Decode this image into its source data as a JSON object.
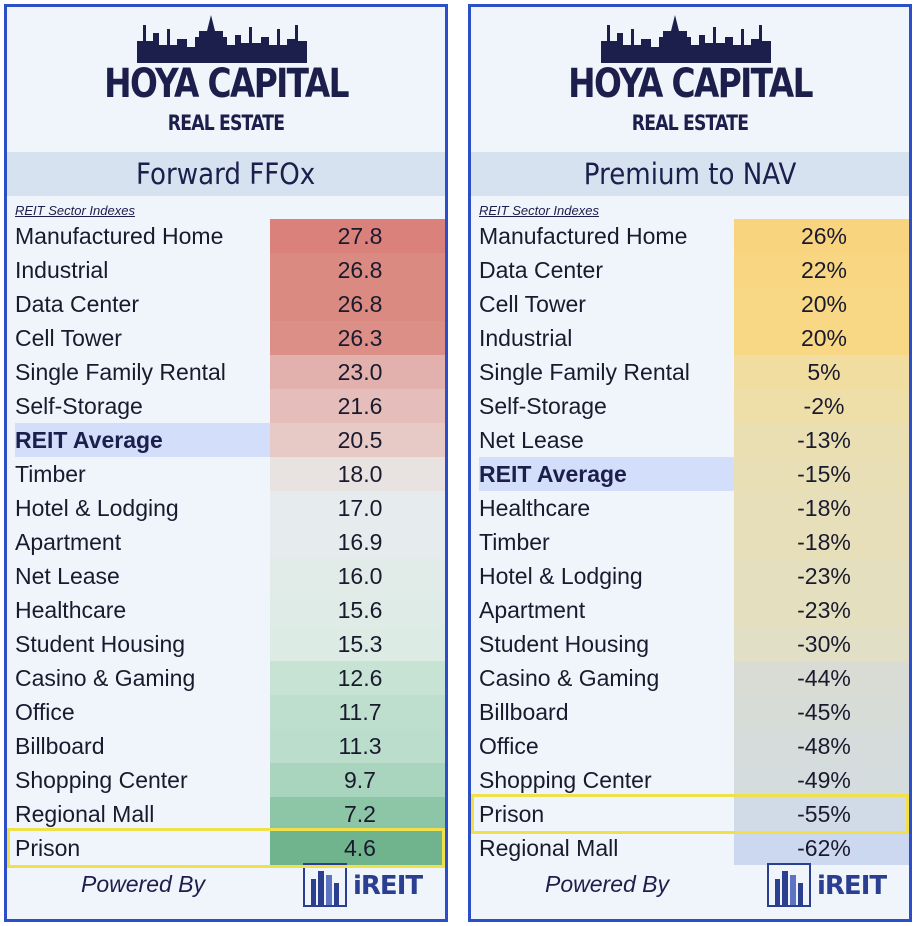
{
  "brand": {
    "name": "HOYA CAPITAL",
    "sub": "REAL ESTATE"
  },
  "footer": {
    "powered_by": "Powered By",
    "partner": "iREIT"
  },
  "highlight_color": "#f0e04a",
  "chart_data": [
    {
      "type": "table",
      "title": "Forward FFOx",
      "subtitle": "REIT Sector Indexes",
      "rows": [
        {
          "label": "Manufactured Home",
          "value": "27.8",
          "bg": "#d9817a"
        },
        {
          "label": "Industrial",
          "value": "26.8",
          "bg": "#db8a82"
        },
        {
          "label": "Data Center",
          "value": "26.8",
          "bg": "#db8a82"
        },
        {
          "label": "Cell Tower",
          "value": "26.3",
          "bg": "#dc8f87"
        },
        {
          "label": "Single Family Rental",
          "value": "23.0",
          "bg": "#e3b1ad"
        },
        {
          "label": "Self-Storage",
          "value": "21.6",
          "bg": "#e5bebb"
        },
        {
          "label": "REIT Average",
          "value": "20.5",
          "bg": "#e7c9c6",
          "emphasis": true
        },
        {
          "label": "Timber",
          "value": "18.0",
          "bg": "#e8e2e1"
        },
        {
          "label": "Hotel & Lodging",
          "value": "17.0",
          "bg": "#e6ecee"
        },
        {
          "label": "Apartment",
          "value": "16.9",
          "bg": "#e6ecee"
        },
        {
          "label": "Net Lease",
          "value": "16.0",
          "bg": "#e1ebe8"
        },
        {
          "label": "Healthcare",
          "value": "15.6",
          "bg": "#dfebe6"
        },
        {
          "label": "Student Housing",
          "value": "15.3",
          "bg": "#dcebe4"
        },
        {
          "label": "Casino & Gaming",
          "value": "12.6",
          "bg": "#c7e3d4"
        },
        {
          "label": "Office",
          "value": "11.7",
          "bg": "#bfdfce"
        },
        {
          "label": "Billboard",
          "value": "11.3",
          "bg": "#bbddcb"
        },
        {
          "label": "Shopping Center",
          "value": "9.7",
          "bg": "#a9d4bd"
        },
        {
          "label": "Regional Mall",
          "value": "7.2",
          "bg": "#8dc6a7"
        },
        {
          "label": "Prison",
          "value": "4.6",
          "bg": "#6fb48c",
          "highlight": true
        }
      ]
    },
    {
      "type": "table",
      "title": "Premium to NAV",
      "subtitle": "REIT Sector Indexes",
      "rows": [
        {
          "label": "Manufactured Home",
          "value": "26%",
          "bg": "#f8d47f"
        },
        {
          "label": "Data Center",
          "value": "22%",
          "bg": "#f8d682"
        },
        {
          "label": "Cell Tower",
          "value": "20%",
          "bg": "#f8d885"
        },
        {
          "label": "Industrial",
          "value": "20%",
          "bg": "#f8d885"
        },
        {
          "label": "Single Family Rental",
          "value": "5%",
          "bg": "#f2dda0"
        },
        {
          "label": "Self-Storage",
          "value": "-2%",
          "bg": "#eedfa8"
        },
        {
          "label": "Net Lease",
          "value": "-13%",
          "bg": "#eadfb3"
        },
        {
          "label": "REIT Average",
          "value": "-15%",
          "bg": "#e9dfb6",
          "emphasis": true
        },
        {
          "label": "Healthcare",
          "value": "-18%",
          "bg": "#e7dfb9"
        },
        {
          "label": "Timber",
          "value": "-18%",
          "bg": "#e7dfb9"
        },
        {
          "label": "Hotel & Lodging",
          "value": "-23%",
          "bg": "#e4dfbf"
        },
        {
          "label": "Apartment",
          "value": "-23%",
          "bg": "#e4dfbf"
        },
        {
          "label": "Student Housing",
          "value": "-30%",
          "bg": "#e1dfc6"
        },
        {
          "label": "Casino & Gaming",
          "value": "-44%",
          "bg": "#d9dcd4"
        },
        {
          "label": "Billboard",
          "value": "-45%",
          "bg": "#d8dcd6"
        },
        {
          "label": "Office",
          "value": "-48%",
          "bg": "#d6dcdb"
        },
        {
          "label": "Shopping Center",
          "value": "-49%",
          "bg": "#d5dcdd"
        },
        {
          "label": "Prison",
          "value": "-55%",
          "bg": "#d1dbe7",
          "highlight": true
        },
        {
          "label": "Regional Mall",
          "value": "-62%",
          "bg": "#ccd8f0"
        }
      ]
    }
  ]
}
